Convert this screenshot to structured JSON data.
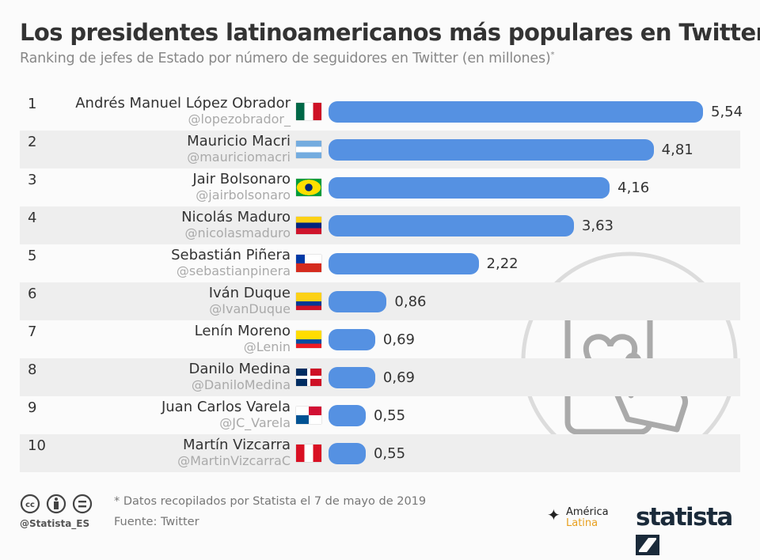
{
  "title": "Los presidentes latinoamericanos más populares en Twitter",
  "subtitle": "Ranking de jefes de Estado por número de seguidores en Twitter (en millones)",
  "subtitle_mark": "*",
  "chart_data": {
    "type": "bar",
    "orientation": "horizontal",
    "title": "Los presidentes latinoamericanos más populares en Twitter",
    "xlim": [
      0,
      5.54
    ],
    "bar_color": "#5591e2",
    "rows": [
      {
        "rank": "1",
        "name": "Andrés Manuel López Obrador",
        "handle": "@lopezobrador_",
        "flag": "mexico",
        "value": 5.54,
        "label": "5,54"
      },
      {
        "rank": "2",
        "name": "Mauricio Macri",
        "handle": "@mauriciomacri",
        "flag": "argentina",
        "value": 4.81,
        "label": "4,81"
      },
      {
        "rank": "3",
        "name": "Jair Bolsonaro",
        "handle": "@jairbolsonaro",
        "flag": "brazil",
        "value": 4.16,
        "label": "4,16"
      },
      {
        "rank": "4",
        "name": "Nicolás Maduro",
        "handle": "@nicolasmaduro",
        "flag": "venezuela",
        "value": 3.63,
        "label": "3,63"
      },
      {
        "rank": "5",
        "name": "Sebastián Piñera",
        "handle": "@sebastianpinera",
        "flag": "chile",
        "value": 2.22,
        "label": "2,22"
      },
      {
        "rank": "6",
        "name": "Iván Duque",
        "handle": "@IvanDuque",
        "flag": "colombia",
        "value": 0.86,
        "label": "0,86"
      },
      {
        "rank": "7",
        "name": "Lenín Moreno",
        "handle": "@Lenin",
        "flag": "ecuador",
        "value": 0.69,
        "label": "0,69"
      },
      {
        "rank": "8",
        "name": "Danilo Medina",
        "handle": "@DaniloMedina",
        "flag": "dominican-republic",
        "value": 0.69,
        "label": "0,69"
      },
      {
        "rank": "9",
        "name": "Juan Carlos Varela",
        "handle": "@JC_Varela",
        "flag": "panama",
        "value": 0.55,
        "label": "0,55"
      },
      {
        "rank": "10",
        "name": "Martín Vizcarra",
        "handle": "@MartinVizcarraC",
        "flag": "peru",
        "value": 0.55,
        "label": "0,55"
      }
    ]
  },
  "footer": {
    "note": "* Datos recopilados por Statista el 7 de mayo de 2019",
    "source": "Fuente: Twitter",
    "handle": "@Statista_ES",
    "partner_line1": "América",
    "partner_line2": "Latina",
    "brand": "statista"
  }
}
